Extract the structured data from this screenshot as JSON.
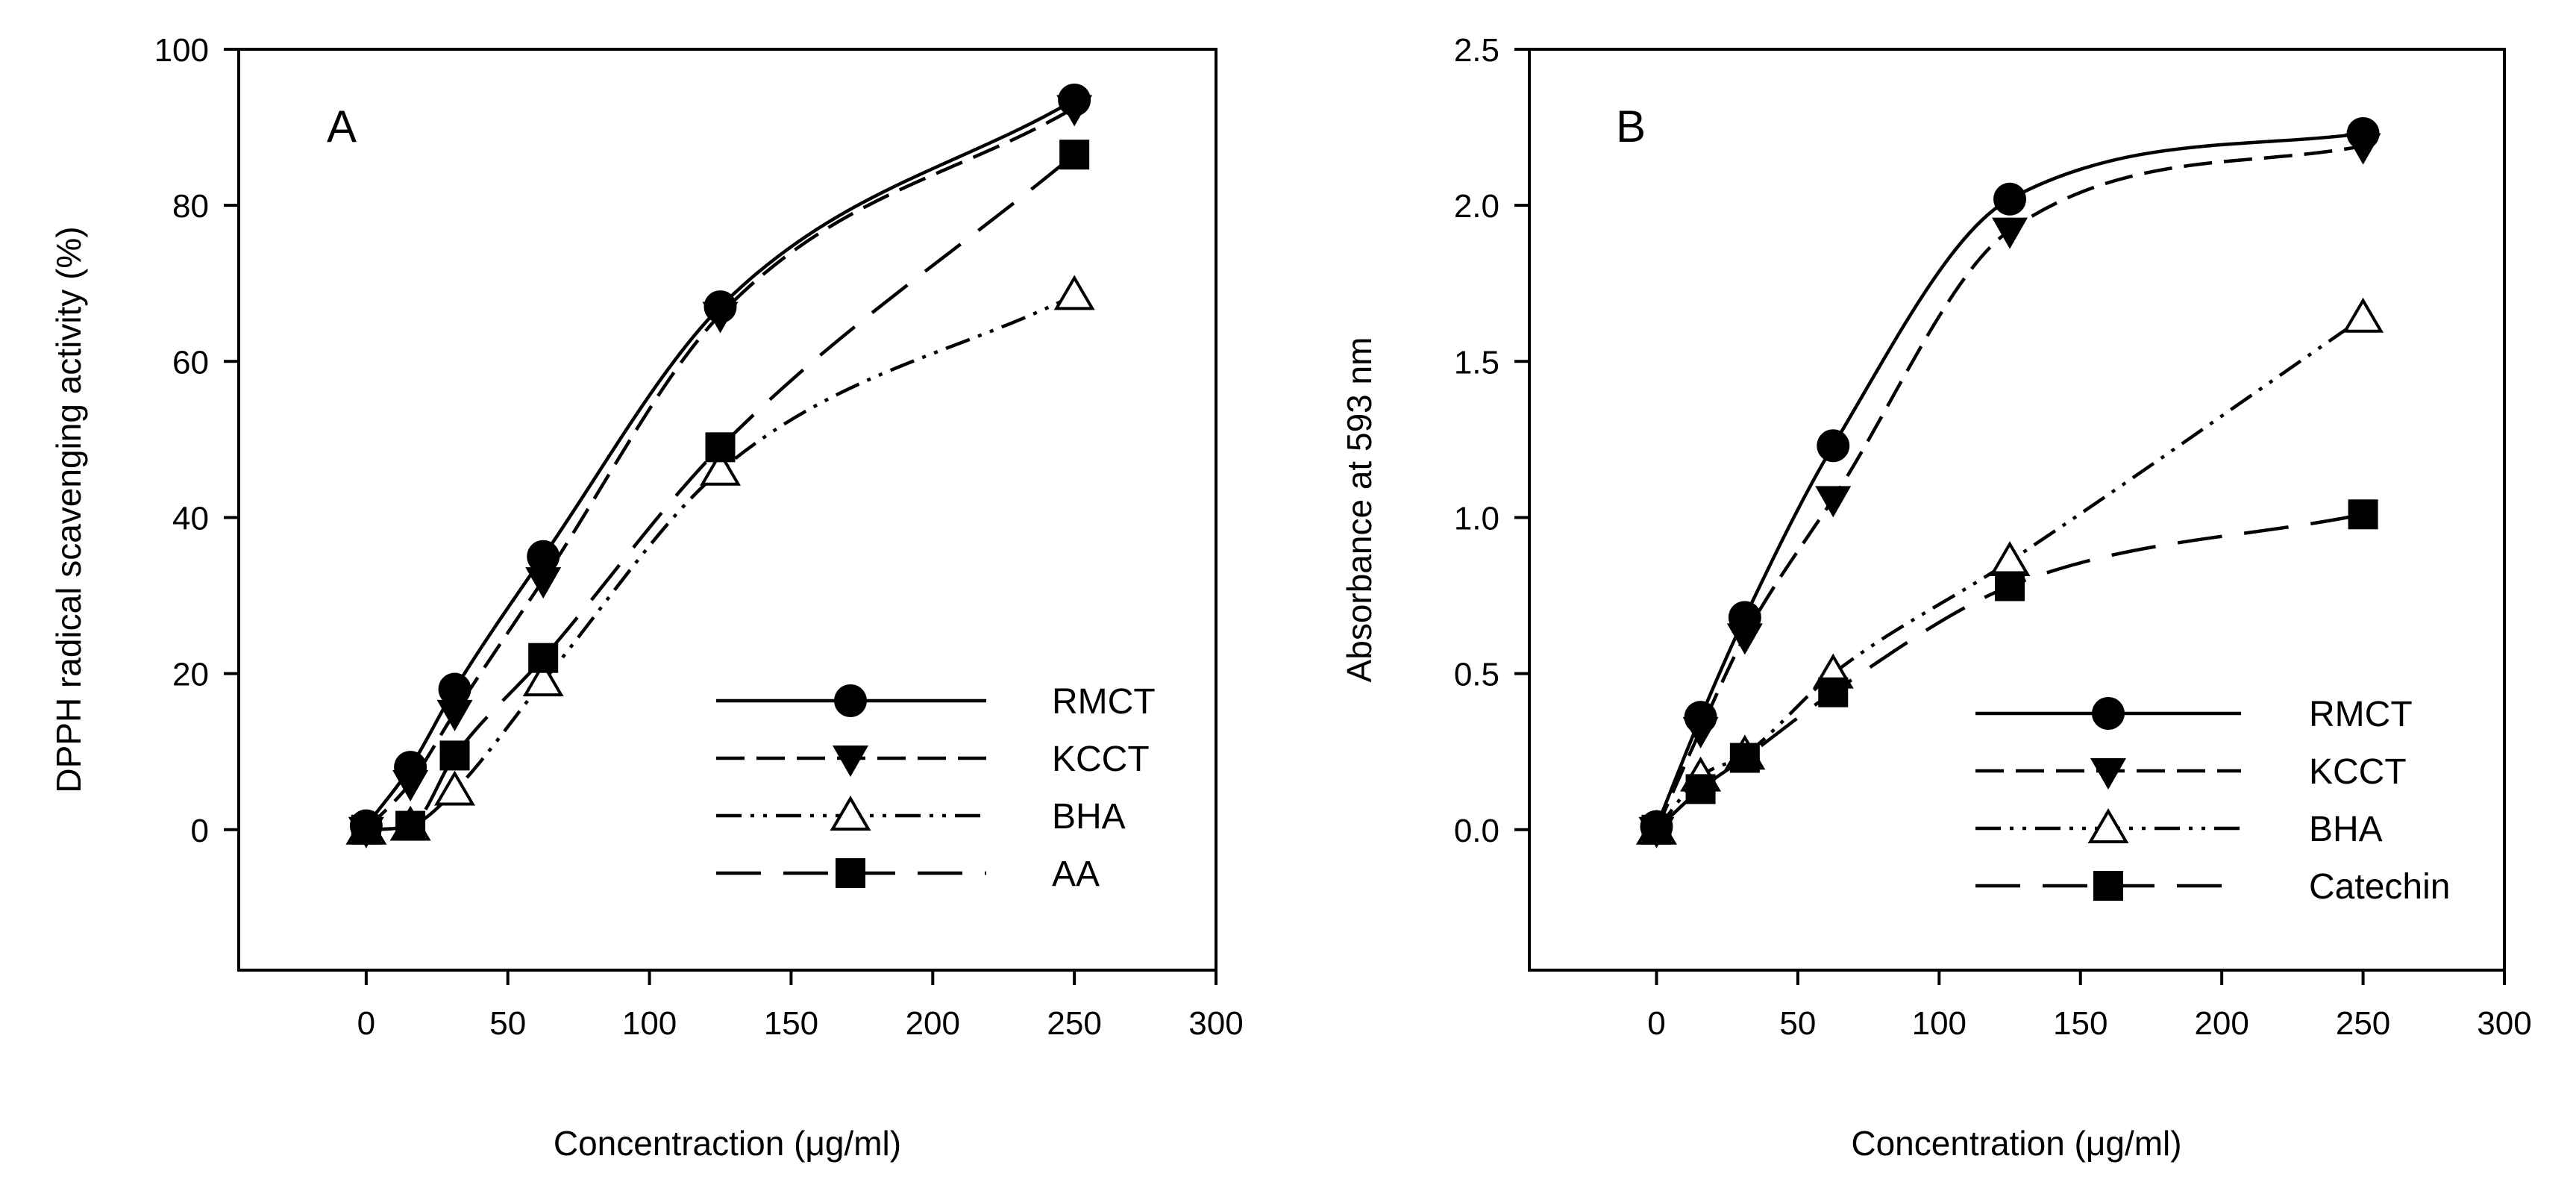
{
  "chart_data": [
    {
      "type": "line",
      "panel": "A",
      "xlabel": "Concentraction (μg/ml)",
      "ylabel": "DPPH radical scavenging activity (%)",
      "xlim": [
        -45,
        300
      ],
      "ylim": [
        -18,
        100
      ],
      "xticks": [
        0,
        50,
        100,
        150,
        200,
        250,
        300
      ],
      "yticks": [
        0,
        20,
        40,
        60,
        80,
        100
      ],
      "legend_position": "lower-right",
      "x": [
        0,
        15.6,
        31.25,
        62.5,
        125,
        250
      ],
      "series": [
        {
          "name": "RMCT",
          "marker": "circle",
          "line": "solid",
          "values": [
            0.5,
            8,
            18,
            35,
            67,
            93.5
          ]
        },
        {
          "name": "KCCT",
          "marker": "triangle-down",
          "line": "dashed",
          "values": [
            0,
            6,
            15,
            32,
            66,
            92.5
          ]
        },
        {
          "name": "BHA",
          "marker": "triangle-up-open",
          "line": "dash-dot-dot",
          "values": [
            0,
            0.5,
            5,
            19,
            46,
            68.5
          ]
        },
        {
          "name": "AA",
          "marker": "square",
          "line": "long-dash",
          "values": [
            0,
            0.5,
            9.5,
            22,
            49,
            86.5
          ]
        }
      ]
    },
    {
      "type": "line",
      "panel": "B",
      "xlabel": "Concentration (μg/ml)",
      "ylabel": "Absorbance at 593 nm",
      "xlim": [
        -45,
        300
      ],
      "ylim": [
        -0.45,
        2.5
      ],
      "xticks": [
        0,
        50,
        100,
        150,
        200,
        250,
        300
      ],
      "yticks": [
        0.0,
        0.5,
        1.0,
        1.5,
        2.0,
        2.5
      ],
      "legend_position": "lower-right",
      "x": [
        0,
        15.6,
        31.25,
        62.5,
        125,
        250
      ],
      "series": [
        {
          "name": "RMCT",
          "marker": "circle",
          "line": "solid",
          "values": [
            0.01,
            0.36,
            0.68,
            1.23,
            2.02,
            2.23
          ]
        },
        {
          "name": "KCCT",
          "marker": "triangle-down",
          "line": "dashed",
          "values": [
            0,
            0.32,
            0.62,
            1.06,
            1.92,
            2.19
          ]
        },
        {
          "name": "BHA",
          "marker": "triangle-up-open",
          "line": "dash-dot-dot",
          "values": [
            0,
            0.17,
            0.24,
            0.5,
            0.86,
            1.64
          ]
        },
        {
          "name": "Catechin",
          "marker": "square",
          "line": "long-dash",
          "values": [
            0,
            0.13,
            0.23,
            0.44,
            0.78,
            1.01
          ]
        }
      ]
    }
  ]
}
